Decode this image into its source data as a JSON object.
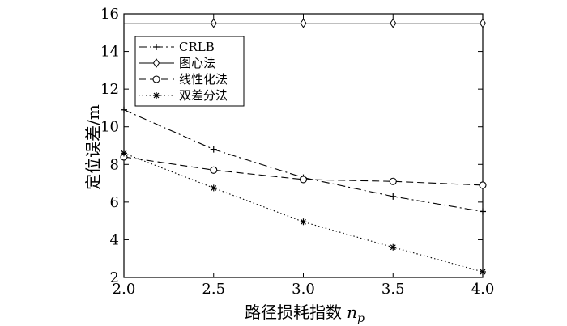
{
  "chart_data": {
    "type": "line",
    "xlabel": "路径损耗指数",
    "xlabel_var": "n",
    "xlabel_sub": "p",
    "ylabel": "定位误差/m",
    "xlim": [
      2.0,
      4.0
    ],
    "ylim": [
      2,
      16
    ],
    "xticks": [
      "2.0",
      "2.5",
      "3.0",
      "3.5",
      "4.0"
    ],
    "yticks": [
      "2",
      "4",
      "6",
      "8",
      "10",
      "12",
      "14",
      "16"
    ],
    "grid": false,
    "legend_position": "top-left",
    "series": [
      {
        "name": "CRLB",
        "style": "dash-dot",
        "marker": "plus",
        "x": [
          2.0,
          2.5,
          3.0,
          3.5,
          4.0
        ],
        "y": [
          10.9,
          8.8,
          7.3,
          6.3,
          5.5
        ]
      },
      {
        "name": "图心法",
        "style": "solid",
        "marker": "diamond",
        "x": [
          2.5,
          3.0,
          3.5,
          4.0
        ],
        "y": [
          15.5,
          15.5,
          15.5,
          15.5
        ]
      },
      {
        "name": "线性化法",
        "style": "dashed",
        "marker": "circle",
        "x": [
          2.0,
          2.5,
          3.0,
          3.5,
          4.0
        ],
        "y": [
          8.4,
          7.7,
          7.2,
          7.1,
          6.9
        ]
      },
      {
        "name": "双差分法",
        "style": "dotted",
        "marker": "star",
        "x": [
          2.0,
          2.5,
          3.0,
          3.5,
          4.0
        ],
        "y": [
          8.6,
          6.75,
          4.95,
          3.6,
          2.3
        ]
      }
    ]
  }
}
